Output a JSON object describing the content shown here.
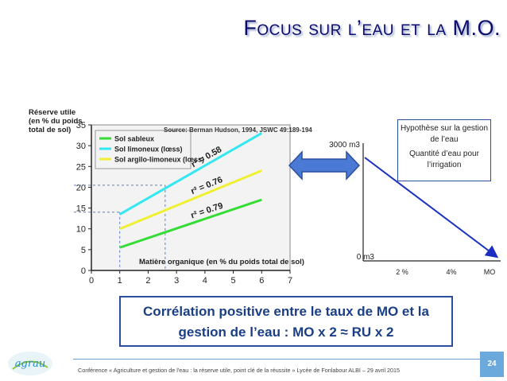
{
  "slide": {
    "title": "Focus sur l’eau et la M.O.",
    "hypothesis_lines": [
      "Hypothèse sur la gestion de l’eau",
      "Quantité d’eau pour l’irrigation"
    ],
    "conclusion_lines": [
      "Corrélation positive entre le taux de MO et la",
      "gestion de l’eau : MO x 2 ≈ RU x 2"
    ],
    "footer": "Conférence « Agriculture et gestion de l'eau : la réserve utile, point clé de la réussite » Lycée de Fonlabour ALBI – 29 avril 2015",
    "page_number": "24",
    "logo_text": "agrau",
    "colors": {
      "title": "#0b0b6b",
      "accent": "#2a4f9e",
      "footer_line": "#6f9fd0",
      "page_badge": "#6ba8dc"
    }
  },
  "chart_data": [
    {
      "type": "line",
      "ylabel_lines": [
        "Réserve utile",
        "(en % du poids",
        "total de sol)"
      ],
      "xlabel": "Matière organique (en % du poids total de sol)",
      "source": "Source: Berman Hudson, 1994, JSWC 49:189-194",
      "xlim": [
        0,
        7
      ],
      "ylim": [
        0,
        35
      ],
      "x_ticks": [
        0,
        1,
        2,
        3,
        4,
        5,
        6,
        7
      ],
      "y_ticks": [
        0,
        5,
        10,
        15,
        20,
        25,
        30,
        35
      ],
      "grid": false,
      "legend_position": "top-left",
      "series": [
        {
          "name": "Sol sableux",
          "color": "#33dd33",
          "x": [
            1,
            6
          ],
          "y": [
            5.5,
            17
          ],
          "r2_label": "r² = 0.79"
        },
        {
          "name": "Sol limoneux (lœss)",
          "color": "#33e8f0",
          "x": [
            1,
            6
          ],
          "y": [
            13.5,
            33
          ],
          "r2_label": "r² = 0.58"
        },
        {
          "name": "Sol argilo-limoneux (lœss)",
          "color": "#f0f033",
          "x": [
            1,
            6
          ],
          "y": [
            10,
            24
          ],
          "r2_label": "r² = 0.76"
        }
      ],
      "reference_lines": {
        "x": [
          1,
          2.6
        ],
        "y": [
          14,
          20.5
        ]
      }
    },
    {
      "type": "line",
      "y_tick_labels": [
        "3000 m3",
        "0 m3"
      ],
      "x_tick_labels": [
        "2 %",
        "4%",
        "MO"
      ],
      "series": [
        {
          "x": [
            "2 %",
            "MO"
          ],
          "y": [
            "3000 m3",
            "0 m3"
          ],
          "color": "#1a2fc0"
        }
      ]
    }
  ]
}
